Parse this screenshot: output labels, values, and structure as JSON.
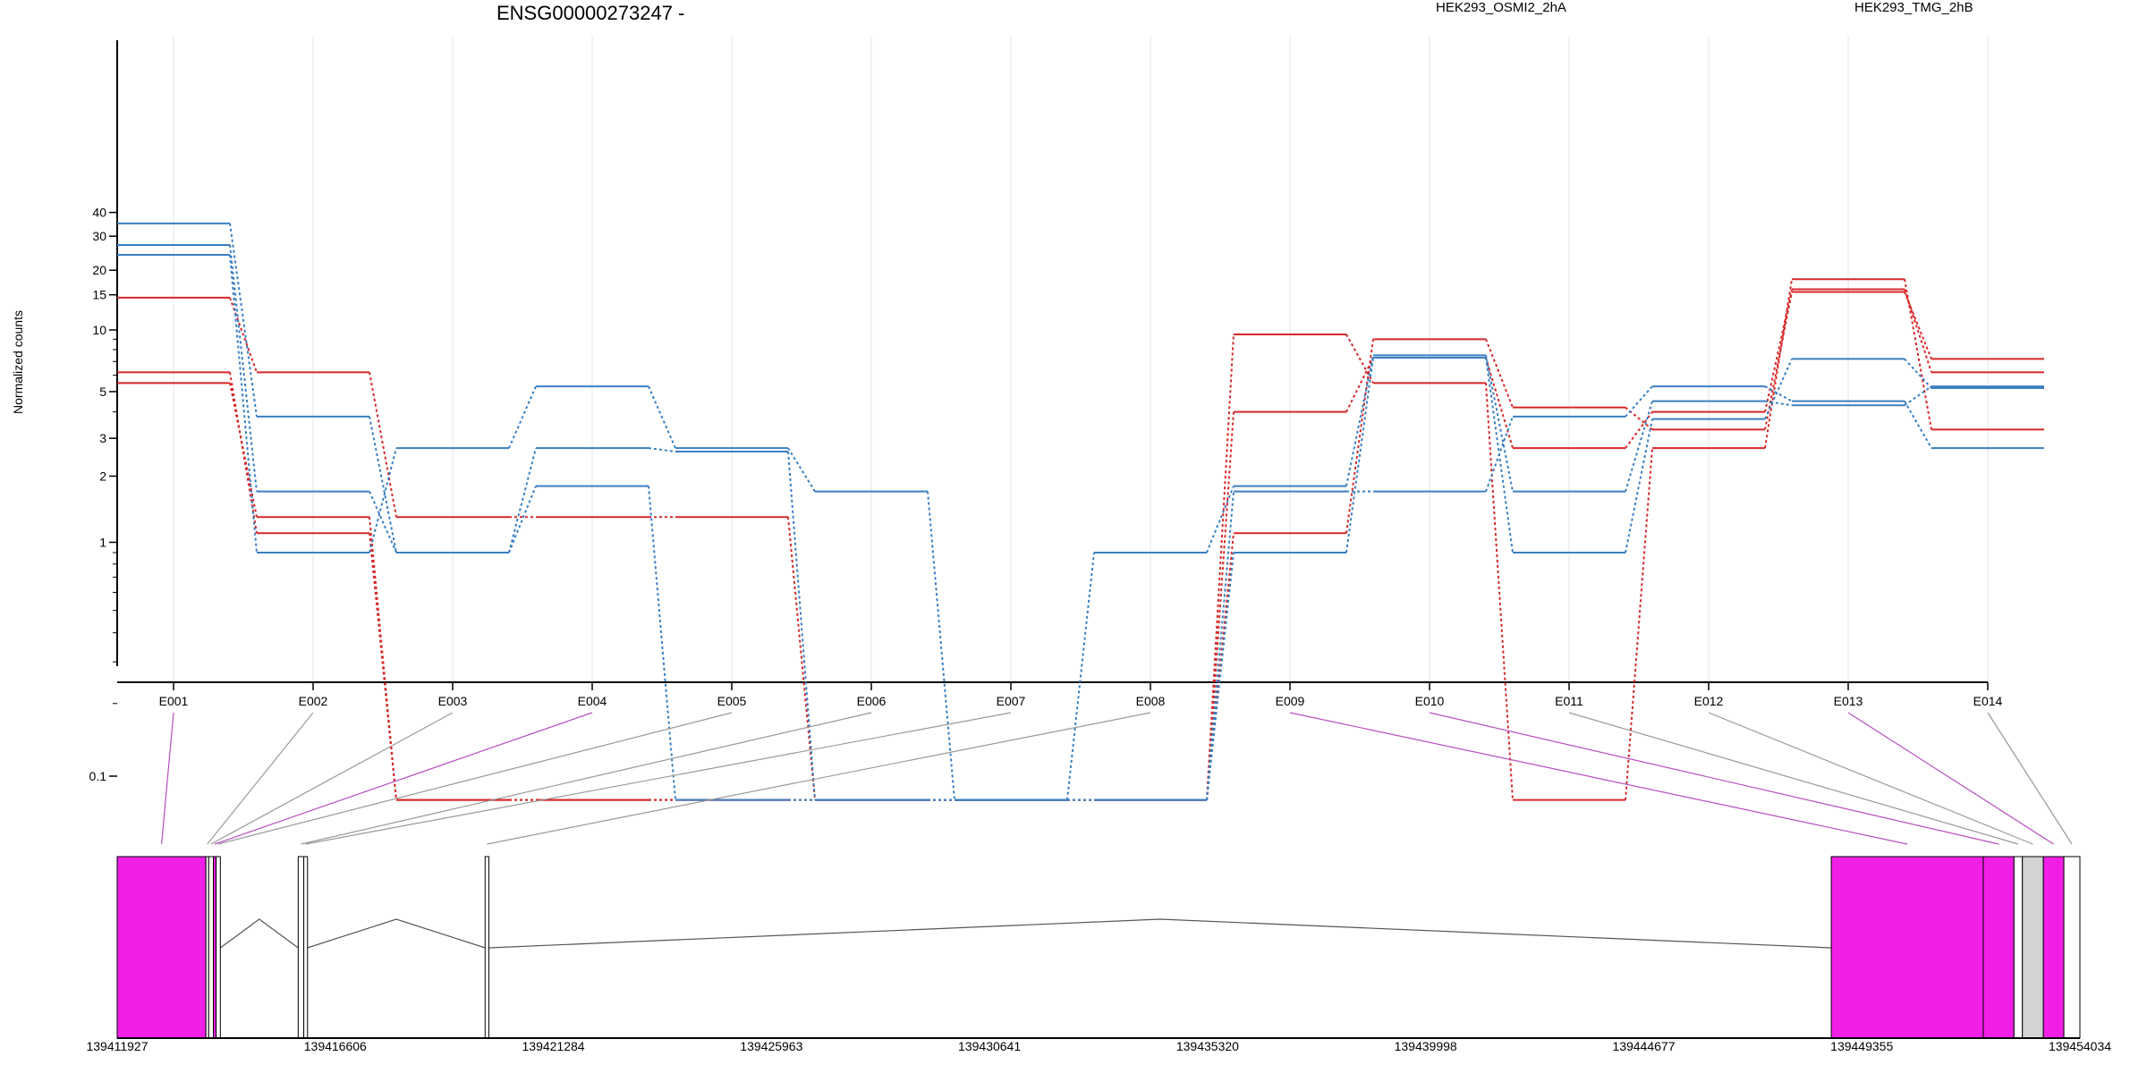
{
  "chart_data": {
    "type": "line",
    "title": "ENSG00000273247 -",
    "ylabel": "Normalized counts",
    "y_scale": "log",
    "y_ticks": [
      "0.1",
      "1",
      "2",
      "3",
      "5",
      "10",
      "15",
      "20",
      "30",
      "40"
    ],
    "categories": [
      "E001",
      "E002",
      "E003",
      "E004",
      "E005",
      "E006",
      "E007",
      "E008",
      "E009",
      "E010",
      "E011",
      "E012",
      "E013",
      "E014"
    ],
    "groups": [
      {
        "label": "HEK293_OSMI2_2hA",
        "color": "#d62728"
      },
      {
        "label": "HEK293_TMG_2hB",
        "color": "#3a7fc1"
      }
    ],
    "series": [
      {
        "group": 0,
        "values": [
          14.5,
          6.2,
          1.3,
          1.3,
          1.3,
          0.08,
          0.08,
          0.08,
          1.1,
          9.0,
          4.2,
          3.3,
          15.5,
          7.2
        ]
      },
      {
        "group": 0,
        "values": [
          6.2,
          1.1,
          0.08,
          0.08,
          0.08,
          0.08,
          0.08,
          0.08,
          4.0,
          7.3,
          2.7,
          4.0,
          16.0,
          6.2
        ]
      },
      {
        "group": 0,
        "values": [
          5.5,
          1.3,
          0.08,
          0.08,
          0.08,
          0.08,
          0.08,
          0.08,
          9.5,
          5.5,
          0.08,
          2.7,
          18.0,
          3.3
        ]
      },
      {
        "group": 1,
        "values": [
          35.0,
          3.8,
          0.9,
          2.7,
          2.6,
          0.08,
          0.08,
          0.9,
          1.8,
          7.5,
          1.7,
          4.5,
          4.3,
          5.3
        ]
      },
      {
        "group": 1,
        "values": [
          27.0,
          1.7,
          0.9,
          1.8,
          0.08,
          0.08,
          0.08,
          0.08,
          1.7,
          1.7,
          3.8,
          5.3,
          4.5,
          2.7
        ]
      },
      {
        "group": 1,
        "values": [
          24.0,
          0.9,
          2.7,
          5.3,
          2.7,
          1.7,
          0.08,
          0.08,
          0.9,
          7.3,
          0.9,
          3.7,
          7.2,
          5.2
        ]
      }
    ],
    "genome_axis": {
      "ticks": [
        "139411927",
        "139416606",
        "139421284",
        "139425963",
        "139430641",
        "139435320",
        "139439998",
        "139444677",
        "139449355",
        "139454034"
      ]
    },
    "exon_bins": [
      {
        "label": "E001",
        "start": 139411927,
        "end": 139413830,
        "highlight": true
      },
      {
        "label": "E002",
        "start": 139413830,
        "end": 139413890,
        "highlight": false
      },
      {
        "label": "E003",
        "start": 139413890,
        "end": 139413990,
        "highlight": false
      },
      {
        "label": "E004",
        "start": 139413990,
        "end": 139414050,
        "highlight": true
      },
      {
        "label": "E005",
        "start": 139414050,
        "end": 139414140,
        "highlight": false
      },
      {
        "label": "E006",
        "start": 139415810,
        "end": 139415930,
        "highlight": false
      },
      {
        "label": "E007",
        "start": 139415930,
        "end": 139416010,
        "highlight": false
      },
      {
        "label": "E008",
        "start": 139419820,
        "end": 139419900,
        "highlight": false
      },
      {
        "label": "E009",
        "start": 139448700,
        "end": 139451960,
        "highlight": true
      },
      {
        "label": "E010",
        "start": 139451960,
        "end": 139452620,
        "highlight": true
      },
      {
        "label": "E011",
        "start": 139452620,
        "end": 139452800,
        "highlight": false
      },
      {
        "label": "E012",
        "start": 139452800,
        "end": 139453250,
        "highlight": false
      },
      {
        "label": "E013",
        "start": 139453250,
        "end": 139453690,
        "highlight": true
      },
      {
        "label": "E014",
        "start": 139453690,
        "end": 139454034,
        "highlight": false
      }
    ],
    "introns": [
      [
        139414140,
        139415810
      ],
      [
        139416010,
        139419820
      ],
      [
        139419900,
        139448700
      ]
    ],
    "colors": {
      "highlight": "#f11fe6",
      "plain": "#d3d3d3",
      "connector_highlight": "#b84ec0",
      "connector_plain": "#999999",
      "grid": "#e6e6e6"
    }
  }
}
